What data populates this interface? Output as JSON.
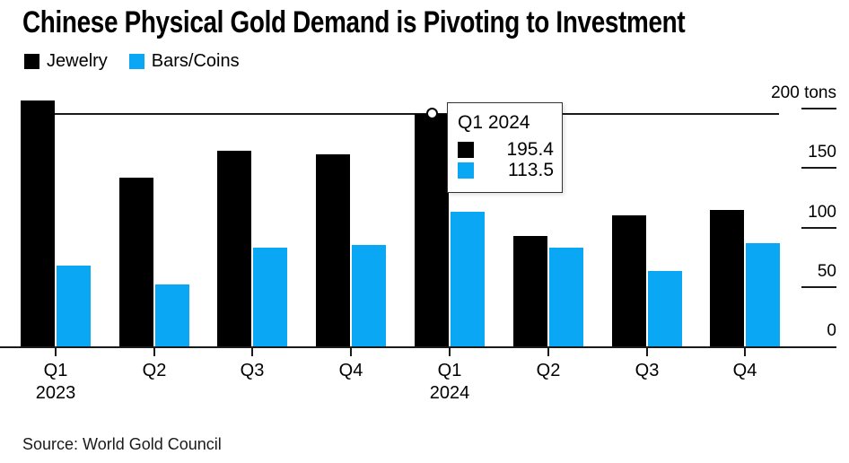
{
  "title": "Chinese Physical Gold Demand is Pivoting to Investment",
  "source_line": "Source: World Gold Council",
  "colors": {
    "jewelry": "#000000",
    "bars_coins": "#0aa7f5",
    "axis_line": "#1a1a1a",
    "background": "#ffffff"
  },
  "legend": {
    "items": [
      {
        "label": "Jewelry",
        "color": "#000000",
        "icon": "legend-swatch-jewelry"
      },
      {
        "label": "Bars/Coins",
        "color": "#0aa7f5",
        "icon": "legend-swatch-bars-coins"
      }
    ]
  },
  "y_axis": {
    "unit": "tons",
    "tick_labels": [
      {
        "value": 200,
        "label": "200 tons"
      },
      {
        "value": 150,
        "label": "150"
      },
      {
        "value": 100,
        "label": "100"
      },
      {
        "value": 50,
        "label": "50"
      },
      {
        "value": 0,
        "label": "0"
      }
    ]
  },
  "x_axis": {
    "categories": [
      {
        "quarter": "Q1",
        "year": "2023"
      },
      {
        "quarter": "Q2",
        "year": ""
      },
      {
        "quarter": "Q3",
        "year": ""
      },
      {
        "quarter": "Q4",
        "year": ""
      },
      {
        "quarter": "Q1",
        "year": "2024"
      },
      {
        "quarter": "Q2",
        "year": ""
      },
      {
        "quarter": "Q3",
        "year": ""
      },
      {
        "quarter": "Q4",
        "year": ""
      }
    ]
  },
  "chart_data": {
    "type": "bar",
    "categories": [
      "Q1 2023",
      "Q2 2023",
      "Q3 2023",
      "Q4 2023",
      "Q1 2024",
      "Q2 2024",
      "Q3 2024",
      "Q4 2024"
    ],
    "series": [
      {
        "name": "Jewelry",
        "color": "#000000",
        "values": [
          206.5,
          142.0,
          164.5,
          161.5,
          195.4,
          93.0,
          110.0,
          115.0
        ]
      },
      {
        "name": "Bars/Coins",
        "color": "#0aa7f5",
        "values": [
          68.0,
          52.0,
          83.0,
          85.5,
          113.5,
          83.0,
          63.5,
          87.0
        ]
      }
    ],
    "title": "Chinese Physical Gold Demand is Pivoting to Investment",
    "xlabel": "",
    "ylabel": "tons",
    "ylim": [
      0,
      200
    ],
    "yticks": [
      0,
      50,
      100,
      150,
      200
    ],
    "grid": false,
    "legend_position": "top-left"
  },
  "tooltip": {
    "title": "Q1 2024",
    "category_index": 4,
    "rows": [
      {
        "series": "Jewelry",
        "color": "#000000",
        "value": "195.4"
      },
      {
        "series": "Bars/Coins",
        "color": "#0aa7f5",
        "value": "113.5"
      }
    ]
  }
}
